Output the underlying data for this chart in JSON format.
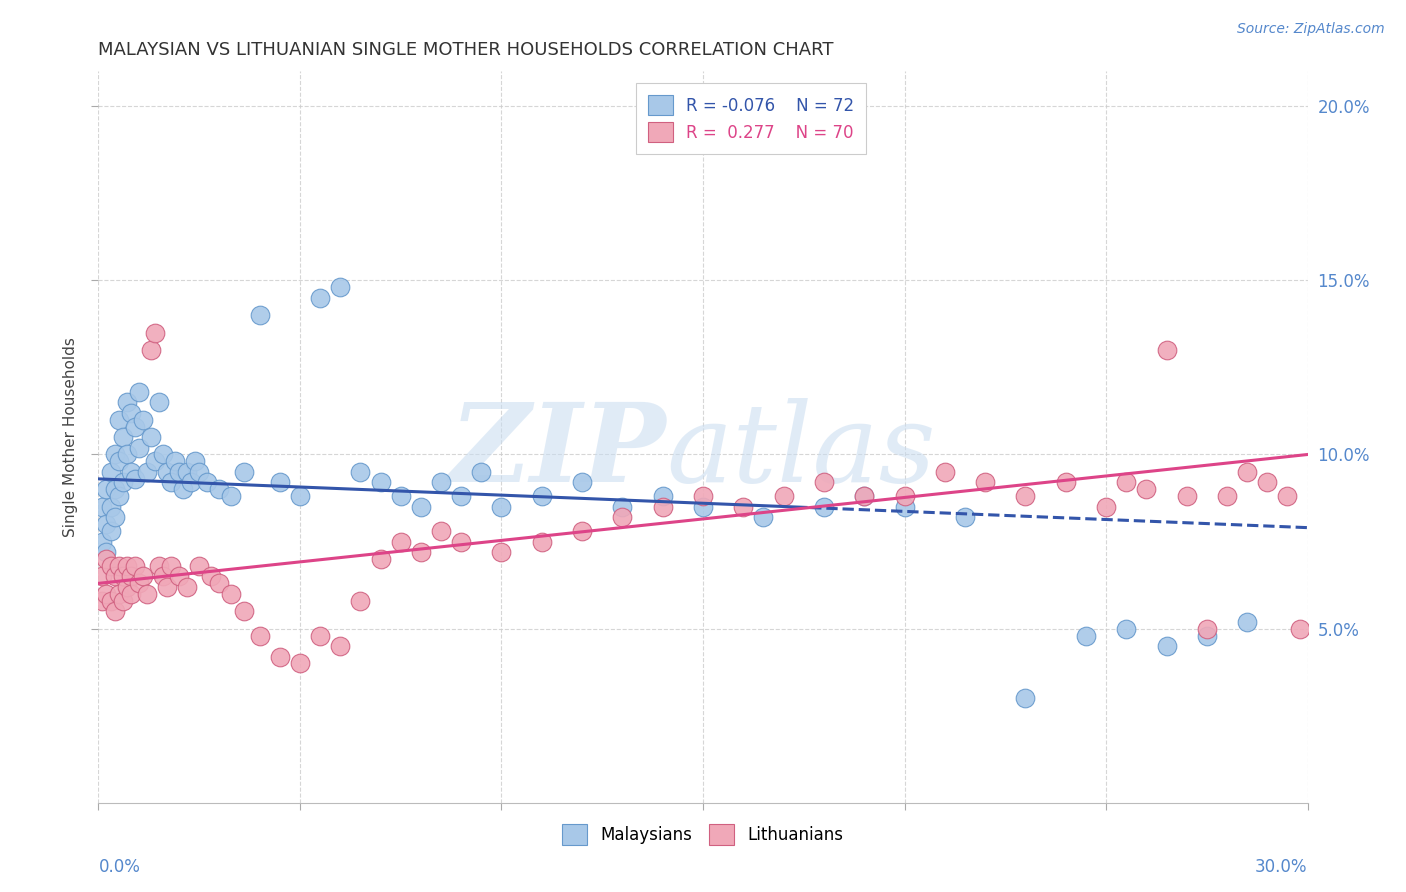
{
  "title": "MALAYSIAN VS LITHUANIAN SINGLE MOTHER HOUSEHOLDS CORRELATION CHART",
  "source": "Source: ZipAtlas.com",
  "ylabel": "Single Mother Households",
  "blue_color": "#A8C8E8",
  "pink_color": "#F0A8B8",
  "blue_edge_color": "#6699CC",
  "pink_edge_color": "#D06080",
  "blue_line_color": "#3355AA",
  "pink_line_color": "#DD4488",
  "blue_R": -0.076,
  "blue_N": 72,
  "pink_R": 0.277,
  "pink_N": 70,
  "xlim": [
    0.0,
    0.3
  ],
  "ylim": [
    0.0,
    0.21
  ],
  "y_ticks": [
    0.05,
    0.1,
    0.15,
    0.2
  ],
  "y_tick_labels": [
    "5.0%",
    "10.0%",
    "15.0%",
    "20.0%"
  ],
  "blue_line_start_y": 0.093,
  "blue_line_end_y": 0.079,
  "pink_line_start_y": 0.063,
  "pink_line_end_y": 0.1,
  "blue_points_x": [
    0.001,
    0.001,
    0.002,
    0.002,
    0.002,
    0.003,
    0.003,
    0.003,
    0.004,
    0.004,
    0.004,
    0.005,
    0.005,
    0.005,
    0.006,
    0.006,
    0.007,
    0.007,
    0.008,
    0.008,
    0.009,
    0.009,
    0.01,
    0.01,
    0.011,
    0.012,
    0.013,
    0.014,
    0.015,
    0.016,
    0.017,
    0.018,
    0.019,
    0.02,
    0.021,
    0.022,
    0.023,
    0.024,
    0.025,
    0.027,
    0.03,
    0.033,
    0.036,
    0.04,
    0.045,
    0.05,
    0.055,
    0.06,
    0.065,
    0.07,
    0.075,
    0.08,
    0.085,
    0.09,
    0.095,
    0.1,
    0.11,
    0.12,
    0.13,
    0.14,
    0.15,
    0.165,
    0.18,
    0.19,
    0.2,
    0.215,
    0.23,
    0.245,
    0.255,
    0.265,
    0.275,
    0.285
  ],
  "blue_points_y": [
    0.085,
    0.075,
    0.09,
    0.08,
    0.072,
    0.095,
    0.085,
    0.078,
    0.1,
    0.09,
    0.082,
    0.11,
    0.098,
    0.088,
    0.105,
    0.092,
    0.115,
    0.1,
    0.112,
    0.095,
    0.108,
    0.093,
    0.118,
    0.102,
    0.11,
    0.095,
    0.105,
    0.098,
    0.115,
    0.1,
    0.095,
    0.092,
    0.098,
    0.095,
    0.09,
    0.095,
    0.092,
    0.098,
    0.095,
    0.092,
    0.09,
    0.088,
    0.095,
    0.14,
    0.092,
    0.088,
    0.145,
    0.148,
    0.095,
    0.092,
    0.088,
    0.085,
    0.092,
    0.088,
    0.095,
    0.085,
    0.088,
    0.092,
    0.085,
    0.088,
    0.085,
    0.082,
    0.085,
    0.088,
    0.085,
    0.082,
    0.03,
    0.048,
    0.05,
    0.045,
    0.048,
    0.052
  ],
  "pink_points_x": [
    0.001,
    0.001,
    0.002,
    0.002,
    0.003,
    0.003,
    0.004,
    0.004,
    0.005,
    0.005,
    0.006,
    0.006,
    0.007,
    0.007,
    0.008,
    0.008,
    0.009,
    0.01,
    0.011,
    0.012,
    0.013,
    0.014,
    0.015,
    0.016,
    0.017,
    0.018,
    0.02,
    0.022,
    0.025,
    0.028,
    0.03,
    0.033,
    0.036,
    0.04,
    0.045,
    0.05,
    0.055,
    0.06,
    0.065,
    0.07,
    0.075,
    0.08,
    0.085,
    0.09,
    0.1,
    0.11,
    0.12,
    0.13,
    0.14,
    0.15,
    0.16,
    0.17,
    0.18,
    0.19,
    0.2,
    0.21,
    0.22,
    0.23,
    0.24,
    0.25,
    0.255,
    0.26,
    0.265,
    0.27,
    0.275,
    0.28,
    0.285,
    0.29,
    0.295,
    0.298
  ],
  "pink_points_y": [
    0.065,
    0.058,
    0.07,
    0.06,
    0.068,
    0.058,
    0.065,
    0.055,
    0.068,
    0.06,
    0.065,
    0.058,
    0.068,
    0.062,
    0.065,
    0.06,
    0.068,
    0.063,
    0.065,
    0.06,
    0.13,
    0.135,
    0.068,
    0.065,
    0.062,
    0.068,
    0.065,
    0.062,
    0.068,
    0.065,
    0.063,
    0.06,
    0.055,
    0.048,
    0.042,
    0.04,
    0.048,
    0.045,
    0.058,
    0.07,
    0.075,
    0.072,
    0.078,
    0.075,
    0.072,
    0.075,
    0.078,
    0.082,
    0.085,
    0.088,
    0.085,
    0.088,
    0.092,
    0.088,
    0.088,
    0.095,
    0.092,
    0.088,
    0.092,
    0.085,
    0.092,
    0.09,
    0.13,
    0.088,
    0.05,
    0.088,
    0.095,
    0.092,
    0.088,
    0.05
  ]
}
